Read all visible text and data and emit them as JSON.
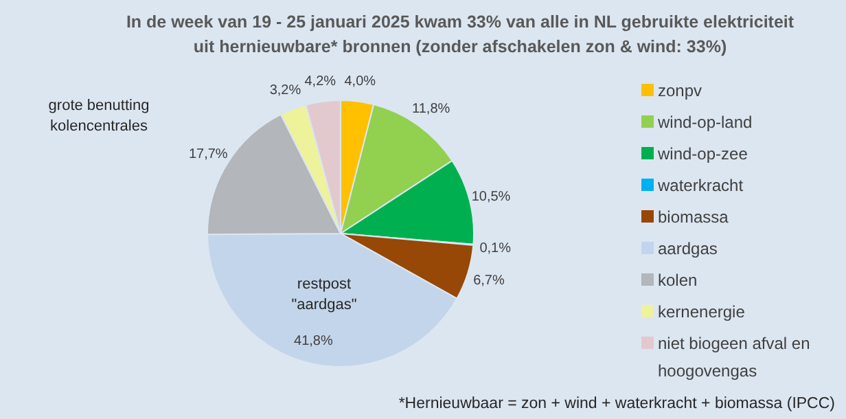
{
  "chart_data": {
    "type": "pie",
    "title": "In de week van 19 - 25  januari 2025 kwam 33% van alle in NL gebruikte elektriciteit\nuit hernieuwbare* bronnen  (zonder afschakelen zon & wind: 33%)",
    "categories": [
      "zonpv",
      "wind-op-land",
      "wind-op-zee",
      "waterkracht",
      "biomassa",
      "aardgas",
      "kolen",
      "kernenergie",
      "niet biogeen afval en hoogovengas"
    ],
    "values": [
      4.0,
      11.8,
      10.5,
      0.1,
      6.7,
      41.8,
      17.7,
      3.2,
      4.2
    ],
    "value_labels": [
      "4,0%",
      "11,8%",
      "10,5%",
      "0,1%",
      "6,7%",
      "41,8%",
      "17,7%",
      "3,2%",
      "4,2%"
    ],
    "colors": [
      "#ffc000",
      "#92d050",
      "#00b050",
      "#00b0f0",
      "#974706",
      "#c3d5ea",
      "#b3b6bb",
      "#eef29a",
      "#e2c9ce"
    ],
    "legend": "right",
    "annotations": [
      "grote benutting\nkolencentrales",
      "restpost\n\"aardgas\"",
      "*Hernieuwbaar = zon + wind + waterkracht + biomassa (IPCC)"
    ]
  }
}
